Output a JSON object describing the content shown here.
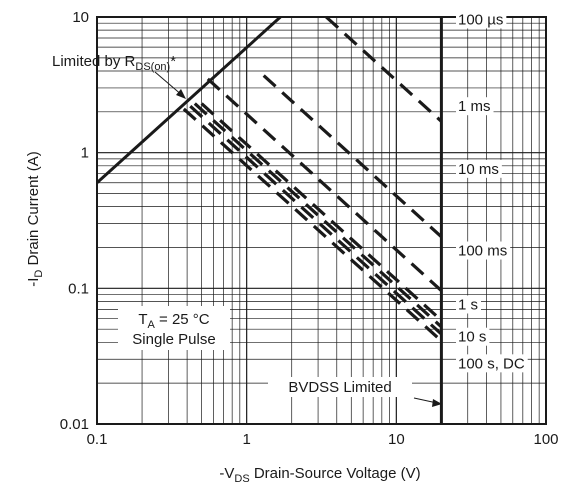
{
  "chart_data": {
    "type": "line",
    "x_scale": "log",
    "y_scale": "log",
    "xlim": [
      0.1,
      100
    ],
    "ylim": [
      0.01,
      10
    ],
    "grid": true,
    "x_ticks": [
      "0.1",
      "1",
      "10",
      "100"
    ],
    "y_ticks": [
      "0.01",
      "0.1",
      "1",
      "10"
    ],
    "xlabel": {
      "prefix": "-V",
      "sub": "DS",
      "rest": " Drain-Source Voltage (V)"
    },
    "ylabel": {
      "prefix": "-I",
      "sub": "D",
      "rest": " Drain Current (A)"
    },
    "annotations": {
      "rds": {
        "prefix": "Limited by R",
        "sub": "DS(on)",
        "suffix": "*"
      },
      "ta": {
        "prefix": "T",
        "sub": "A",
        "rest": " = 25 °C"
      },
      "pulse": "Single Pulse",
      "bvdss": "BVDSS Limited"
    },
    "series": [
      {
        "name": "Limited by RDS(on)",
        "style": "solid",
        "x": [
          0.1,
          1.68
        ],
        "y": [
          0.6,
          10
        ]
      },
      {
        "name": "100 µs",
        "style": "dashed",
        "x": [
          3.4,
          20
        ],
        "y": [
          10,
          1.7
        ]
      },
      {
        "name": "1 ms",
        "style": "dashed",
        "x": [
          1.3,
          20
        ],
        "y": [
          3.7,
          0.24
        ]
      },
      {
        "name": "10 ms",
        "style": "dashed",
        "x": [
          0.55,
          20
        ],
        "y": [
          3.5,
          0.096
        ]
      },
      {
        "name": "100 ms",
        "style": "dashed",
        "x": [
          0.5,
          20
        ],
        "y": [
          2.3,
          0.058
        ]
      },
      {
        "name": "1 s",
        "style": "dashed",
        "x": [
          0.45,
          20
        ],
        "y": [
          2.3,
          0.052
        ]
      },
      {
        "name": "10 s",
        "style": "dashed",
        "x": [
          0.42,
          20
        ],
        "y": [
          2.2,
          0.046
        ]
      },
      {
        "name": "100 s, DC",
        "style": "dashed",
        "x": [
          0.38,
          20
        ],
        "y": [
          2.1,
          0.041
        ]
      },
      {
        "name": "BVDSS Limited",
        "style": "solid",
        "x": [
          20,
          20
        ],
        "y": [
          0.01,
          10
        ]
      }
    ],
    "curve_labels": [
      {
        "text": "100 µs",
        "series": 1,
        "y": 9.6
      },
      {
        "text": "1 ms",
        "series": 2,
        "y": 2.2
      },
      {
        "text": "10 ms",
        "series": 3,
        "y": 0.76
      },
      {
        "text": "100 ms",
        "series": 4,
        "y": 0.19
      },
      {
        "text": "1 s",
        "series": 5,
        "y": 0.076
      },
      {
        "text": "10 s",
        "series": 6,
        "y": 0.044
      },
      {
        "text": "100 s, DC",
        "series": 7,
        "y": 0.028
      }
    ]
  }
}
